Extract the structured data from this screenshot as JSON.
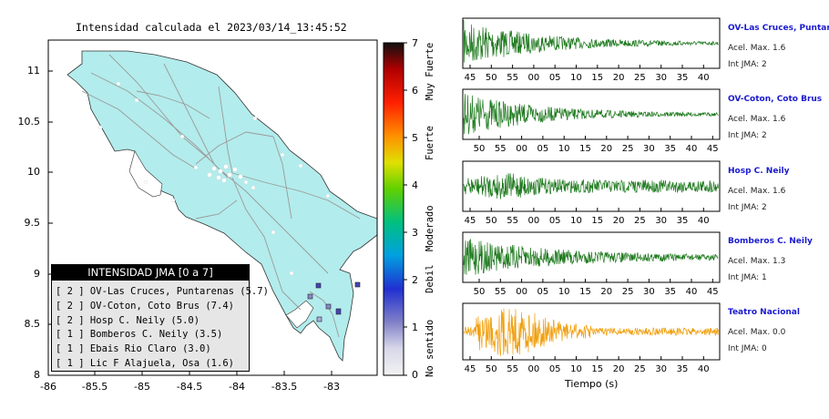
{
  "header": {
    "title": "Intensidad calculada el 2023/03/14_13:45:52"
  },
  "map": {
    "lat_ticks": [
      "11",
      "10.5",
      "10",
      "9.5",
      "9",
      "8.5",
      "8"
    ],
    "lon_ticks": [
      "-86",
      "-85.5",
      "-85",
      "-84.5",
      "-84",
      "-83.5",
      "-83"
    ],
    "land_color": "#b3ecec",
    "station_color": "#5555aa"
  },
  "colorbar": {
    "ticks": [
      "7",
      "6",
      "5",
      "4",
      "3",
      "2",
      "1",
      "0"
    ],
    "labels": [
      "Muy Fuerte",
      "Fuerte",
      "Moderado",
      "Debil",
      "No sentido"
    ]
  },
  "legend": {
    "header": "INTENSIDAD JMA [0 a 7]",
    "items": [
      "[ 2 ]  OV-Las Cruces, Puntarenas (5.7)",
      "[ 2 ]  OV-Coton, Coto Brus (7.4)",
      "[ 2 ]  Hosp C. Neily (5.0)",
      "[ 1 ]  Bomberos C. Neily (3.5)",
      "[ 1 ]  Ebais Rio Claro (3.0)",
      "[ 1 ]  Lic F Alajuela, Osa (1.6)"
    ]
  },
  "waveforms": [
    {
      "name": "OV-Las Cruces, Puntar",
      "accel": "Acel. Max. 1.6",
      "jma": "Int JMA: 2",
      "color": "#1f7a1f",
      "ticks": [
        "45",
        "50",
        "55",
        "00",
        "05",
        "10",
        "15",
        "20",
        "25",
        "30",
        "35",
        "40"
      ]
    },
    {
      "name": "OV-Coton, Coto Brus",
      "accel": "Acel. Max. 1.6",
      "jma": "Int JMA: 2",
      "color": "#1f7a1f",
      "ticks": [
        "50",
        "55",
        "00",
        "05",
        "10",
        "15",
        "20",
        "25",
        "30",
        "35",
        "40",
        "45"
      ]
    },
    {
      "name": "Hosp C. Neily",
      "accel": "Acel. Max. 1.6",
      "jma": "Int JMA: 2",
      "color": "#1f7a1f",
      "ticks": [
        "45",
        "50",
        "55",
        "00",
        "05",
        "10",
        "15",
        "20",
        "25",
        "30",
        "35",
        "40"
      ]
    },
    {
      "name": "Bomberos C. Neily",
      "accel": "Acel. Max. 1.3",
      "jma": "Int JMA: 1",
      "color": "#1f7a1f",
      "ticks": [
        "50",
        "55",
        "00",
        "05",
        "10",
        "15",
        "20",
        "25",
        "30",
        "35",
        "40",
        "45"
      ]
    },
    {
      "name": "Teatro Nacional",
      "accel": "Acel. Max. 0.0",
      "jma": "Int JMA: 0",
      "color": "#f0a010",
      "ticks": [
        "45",
        "50",
        "55",
        "00",
        "05",
        "10",
        "15",
        "20",
        "25",
        "30",
        "35",
        "40"
      ]
    }
  ],
  "xaxis_label": "Tiempo (s)"
}
